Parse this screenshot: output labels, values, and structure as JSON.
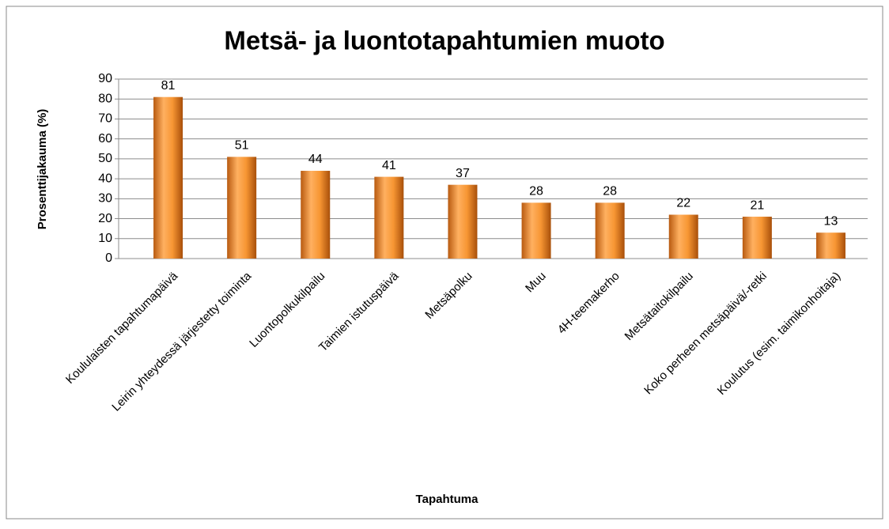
{
  "chart_data": {
    "type": "bar",
    "title": "Metsä- ja luontotapahtumien muoto",
    "x_label": "Tapahtuma",
    "y_label": "Prosenttijakauma (%)",
    "categories": [
      "Koululaisten tapahtumapäivä",
      "Leirin yhteydessä järjestetty toiminta",
      "Luontopolkukilpailu",
      "Taimien istutuspäivä",
      "Metsäpolku",
      "Muu",
      "4H-teemakerho",
      "Metsätaitokilpailu",
      "Koko perheen metsäpäivä/-retki",
      "Koulutus (esim. taimikonhoitaja)"
    ],
    "values": [
      81,
      51,
      44,
      41,
      37,
      28,
      28,
      22,
      21,
      13
    ],
    "color": "#f79633",
    "ylim": [
      0,
      90
    ],
    "yticks": [
      0,
      10,
      20,
      30,
      40,
      50,
      60,
      70,
      80,
      90
    ],
    "grid": true
  }
}
